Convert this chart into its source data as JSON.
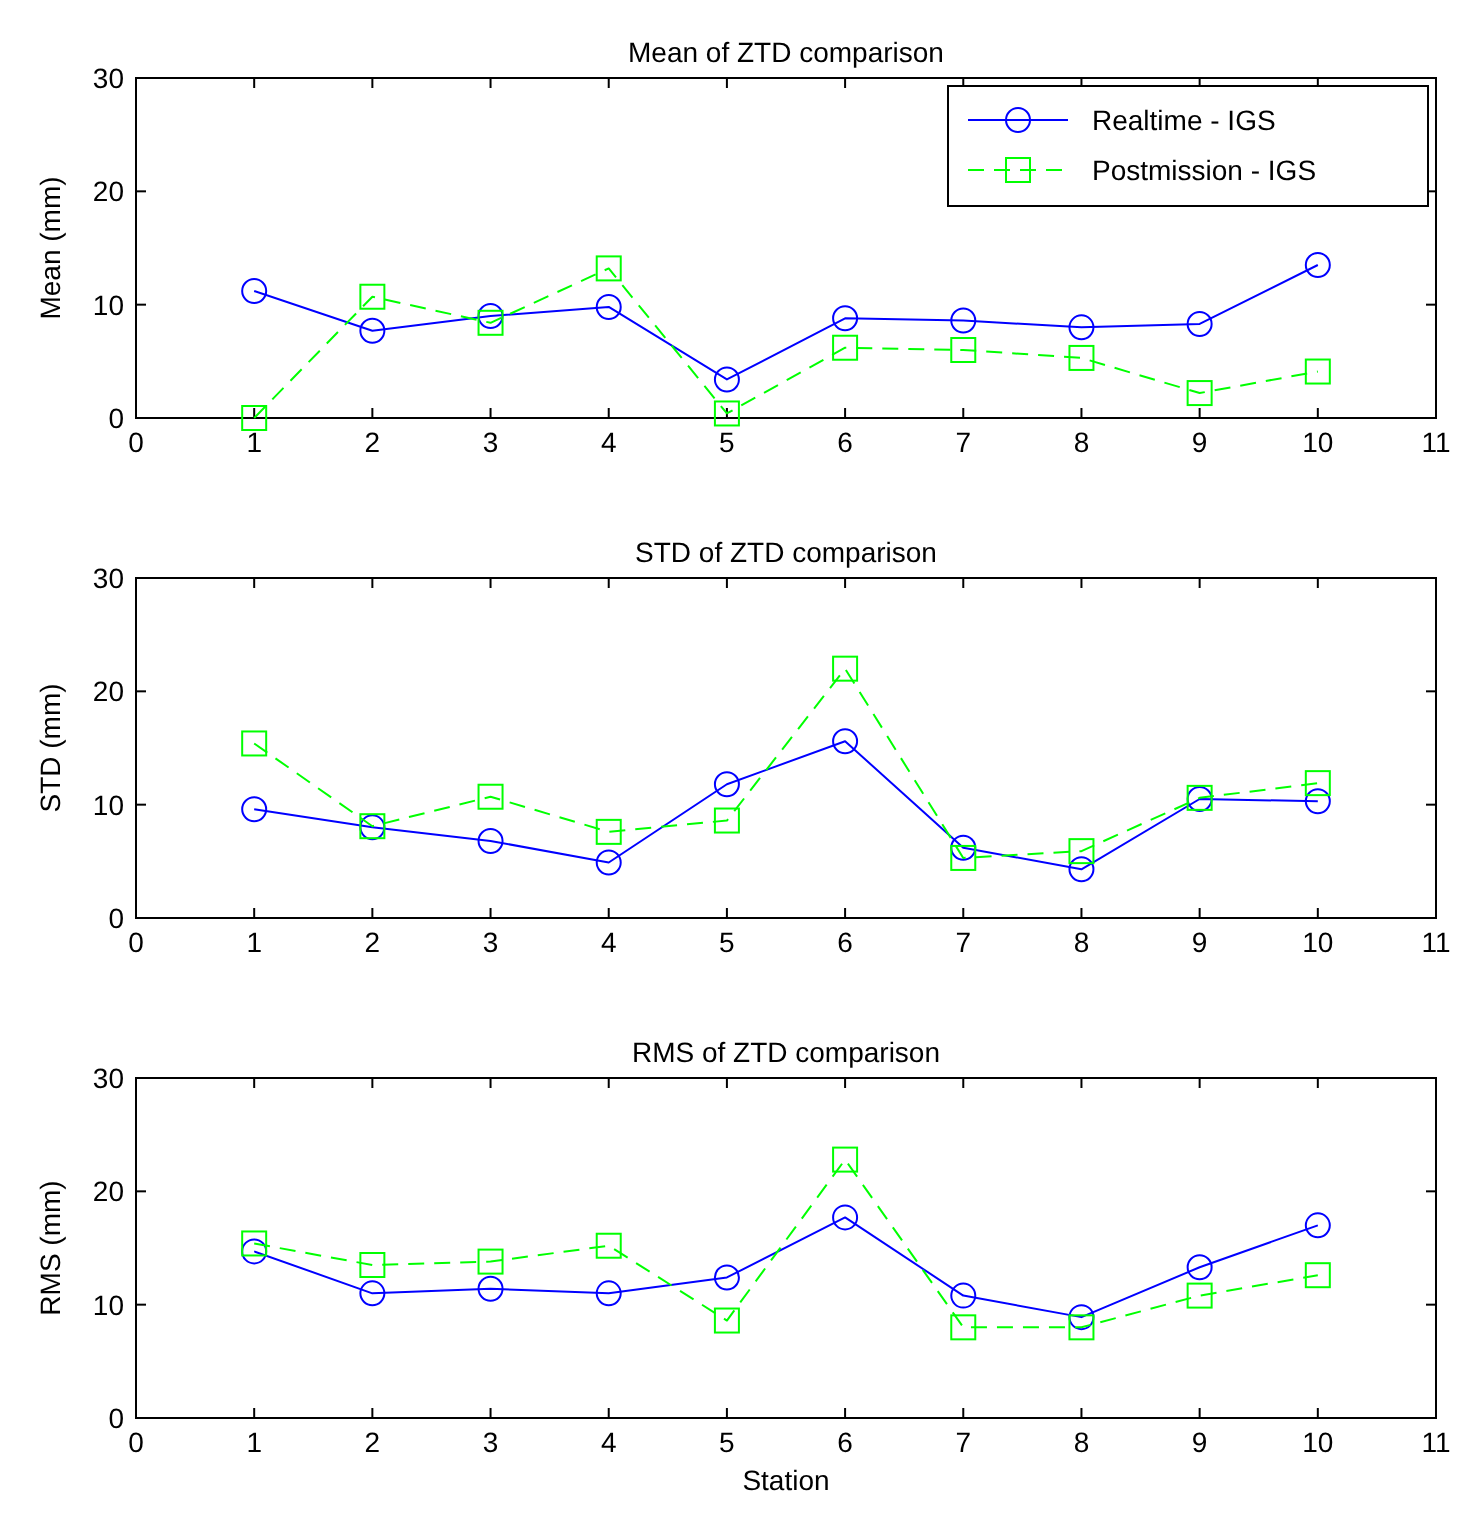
{
  "chart_data": [
    {
      "type": "line",
      "title": "Mean of ZTD comparison",
      "ylabel": "Mean (mm)",
      "x": [
        1,
        2,
        3,
        4,
        5,
        6,
        7,
        8,
        9,
        10
      ],
      "xlim": [
        0,
        11
      ],
      "xticks": [
        0,
        1,
        2,
        3,
        4,
        5,
        6,
        7,
        8,
        9,
        10,
        11
      ],
      "ylim": [
        0,
        30
      ],
      "yticks": [
        0,
        10,
        20,
        30
      ],
      "legend": "top right",
      "grid": false,
      "series": [
        {
          "name": "Realtime - IGS",
          "color": "#0000ff",
          "marker": "circle",
          "line_style": "solid",
          "values": [
            11.2,
            7.7,
            9.0,
            9.8,
            3.4,
            8.8,
            8.6,
            8.0,
            8.3,
            13.5
          ]
        },
        {
          "name": "Postmission - IGS",
          "color": "#00ff00",
          "marker": "square",
          "line_style": "dashed",
          "values": [
            0,
            10.7,
            8.4,
            13.2,
            0.4,
            6.2,
            6.0,
            5.3,
            2.2,
            4.1
          ]
        }
      ]
    },
    {
      "type": "line",
      "title": "STD of ZTD comparison",
      "ylabel": "STD (mm)",
      "x": [
        1,
        2,
        3,
        4,
        5,
        6,
        7,
        8,
        9,
        10
      ],
      "xlim": [
        0,
        11
      ],
      "xticks": [
        0,
        1,
        2,
        3,
        4,
        5,
        6,
        7,
        8,
        9,
        10,
        11
      ],
      "ylim": [
        0,
        30
      ],
      "yticks": [
        0,
        10,
        20,
        30
      ],
      "legend": false,
      "grid": false,
      "series": [
        {
          "color": "#0000ff",
          "marker": "circle",
          "line_style": "solid",
          "values": [
            9.6,
            8.0,
            6.8,
            4.9,
            11.8,
            15.6,
            6.2,
            4.3,
            10.5,
            10.3
          ]
        },
        {
          "color": "#00ff00",
          "marker": "square",
          "line_style": "dashed",
          "values": [
            15.4,
            8.1,
            10.7,
            7.6,
            8.6,
            22.0,
            5.3,
            5.9,
            10.6,
            11.9
          ]
        }
      ]
    },
    {
      "type": "line",
      "title": "RMS of ZTD comparison",
      "xlabel": "Station",
      "ylabel": "RMS (mm)",
      "x": [
        1,
        2,
        3,
        4,
        5,
        6,
        7,
        8,
        9,
        10
      ],
      "xlim": [
        0,
        11
      ],
      "xticks": [
        0,
        1,
        2,
        3,
        4,
        5,
        6,
        7,
        8,
        9,
        10,
        11
      ],
      "ylim": [
        0,
        30
      ],
      "yticks": [
        0,
        10,
        20,
        30
      ],
      "legend": false,
      "grid": false,
      "series": [
        {
          "color": "#0000ff",
          "marker": "circle",
          "line_style": "solid",
          "values": [
            14.7,
            11.0,
            11.4,
            11.0,
            12.4,
            17.7,
            10.8,
            8.9,
            13.3,
            17.0
          ]
        },
        {
          "color": "#00ff00",
          "marker": "square",
          "line_style": "dashed",
          "values": [
            15.4,
            13.5,
            13.8,
            15.2,
            8.6,
            22.8,
            8.0,
            8.0,
            10.8,
            12.6
          ]
        }
      ]
    }
  ]
}
